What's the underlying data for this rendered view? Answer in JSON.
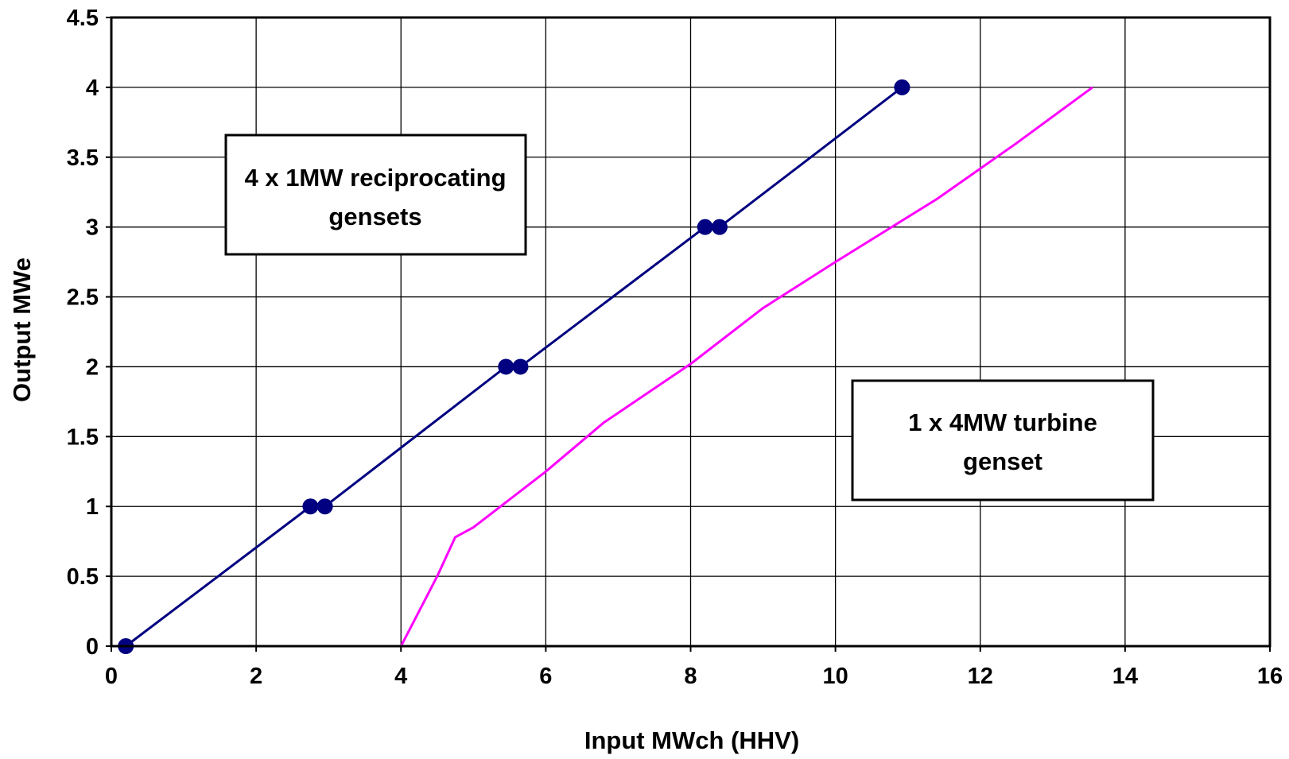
{
  "chart_data": {
    "type": "line",
    "xlabel": "Input MWch (HHV)",
    "ylabel": "Output MWe",
    "xlim": [
      0,
      16
    ],
    "ylim": [
      0,
      4.5
    ],
    "x_ticks": [
      "0",
      "2",
      "4",
      "6",
      "8",
      "10",
      "12",
      "14",
      "16"
    ],
    "y_ticks": [
      "0",
      "0.5",
      "1",
      "1.5",
      "2",
      "2.5",
      "3",
      "3.5",
      "4",
      "4.5"
    ],
    "grid": true,
    "series": [
      {
        "color": "#000080",
        "markers": true,
        "points": [
          {
            "x": 0.2,
            "y": 0
          },
          {
            "x": 2.75,
            "y": 1
          },
          {
            "x": 2.95,
            "y": 1
          },
          {
            "x": 5.45,
            "y": 2
          },
          {
            "x": 5.65,
            "y": 2
          },
          {
            "x": 8.2,
            "y": 3
          },
          {
            "x": 8.4,
            "y": 3
          },
          {
            "x": 10.92,
            "y": 4
          }
        ]
      },
      {
        "color": "#ff00ff",
        "markers": false,
        "points": [
          {
            "x": 4.0,
            "y": 0
          },
          {
            "x": 4.5,
            "y": 0.5
          },
          {
            "x": 4.75,
            "y": 0.78
          },
          {
            "x": 5.0,
            "y": 0.85
          },
          {
            "x": 6.0,
            "y": 1.25
          },
          {
            "x": 6.8,
            "y": 1.6
          },
          {
            "x": 8.0,
            "y": 2.02
          },
          {
            "x": 9.0,
            "y": 2.42
          },
          {
            "x": 10.0,
            "y": 2.75
          },
          {
            "x": 11.4,
            "y": 3.2
          },
          {
            "x": 12.5,
            "y": 3.6
          },
          {
            "x": 13.55,
            "y": 4.0
          }
        ]
      }
    ],
    "annotations": [
      {
        "lines": [
          "4 x 1MW reciprocating",
          "gensets"
        ]
      },
      {
        "lines": [
          "1 x 4MW turbine",
          "genset"
        ]
      }
    ]
  }
}
